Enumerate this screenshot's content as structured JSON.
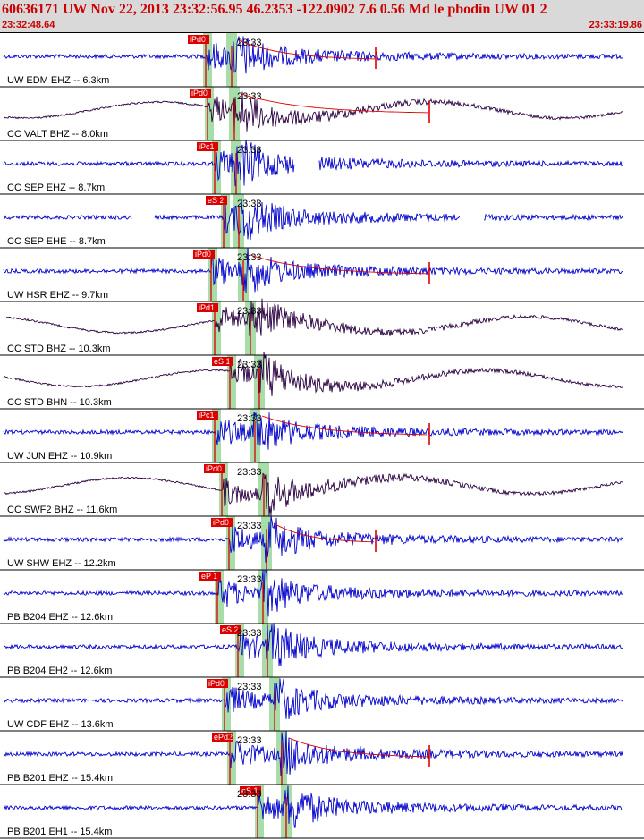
{
  "header": {
    "title": "60636171 UW Nov 22, 2013 23:32:56.95   46.2353 -122.0902  7.6 0.56 Md le pbodin UW 01   2",
    "start_time": "23:32:48.64",
    "end_time": "23:33:19.86"
  },
  "colors": {
    "header_bg": "#d9d9d9",
    "header_text": "#cc0000",
    "trace_blue": "#0000cc",
    "trace_dark": "#2a0040",
    "pick_red": "#dd0000",
    "window_green": "#a8dca8",
    "divider": "#000000"
  },
  "chart_data": {
    "type": "seismogram",
    "time_range": [
      "23:32:48.64",
      "23:33:19.86"
    ],
    "time_span_seconds": 31.22,
    "time_label": "23:33",
    "traces": [
      {
        "label": "UW EDM EHZ -- 6.3km",
        "distance_km": 6.3,
        "p_pick": "iPd0",
        "color": "blue"
      },
      {
        "label": "CC VALT BHZ -- 8.0km",
        "distance_km": 8.0,
        "p_pick": "iPd0",
        "color": "dark"
      },
      {
        "label": "CC SEP EHZ -- 8.7km",
        "distance_km": 8.7,
        "p_pick": "iPc1",
        "color": "blue"
      },
      {
        "label": "CC SEP EHE -- 8.7km",
        "distance_km": 8.7,
        "p_pick": "eS 2",
        "color": "blue"
      },
      {
        "label": "UW HSR EHZ -- 9.7km",
        "distance_km": 9.7,
        "p_pick": "iPd0",
        "color": "blue"
      },
      {
        "label": "CC STD BHZ -- 10.3km",
        "distance_km": 10.3,
        "p_pick": "iPd1",
        "color": "dark"
      },
      {
        "label": "CC STD BHN -- 10.3km",
        "distance_km": 10.3,
        "p_pick": "eS 1",
        "color": "dark"
      },
      {
        "label": "UW JUN EHZ -- 10.9km",
        "distance_km": 10.9,
        "p_pick": "iPc1",
        "color": "blue"
      },
      {
        "label": "CC SWF2 BHZ -- 11.6km",
        "distance_km": 11.6,
        "p_pick": "iPd0",
        "color": "dark"
      },
      {
        "label": "UW SHW EHZ -- 12.2km",
        "distance_km": 12.2,
        "p_pick": "iPd0",
        "color": "blue"
      },
      {
        "label": "PB B204 EHZ -- 12.6km",
        "distance_km": 12.6,
        "p_pick": "eP 1",
        "color": "blue"
      },
      {
        "label": "PB B204 EH2 -- 12.6km",
        "distance_km": 12.6,
        "p_pick": "eS 2",
        "color": "blue"
      },
      {
        "label": "UW CDF EHZ -- 13.6km",
        "distance_km": 13.6,
        "p_pick": "iPd0",
        "color": "blue"
      },
      {
        "label": "PB B201 EHZ -- 15.4km",
        "distance_km": 15.4,
        "p_pick": "ePd2",
        "color": "blue"
      },
      {
        "label": "PB B201 EH1 -- 15.4km",
        "distance_km": 15.4,
        "p_pick": "eS 1",
        "color": "blue"
      }
    ]
  }
}
